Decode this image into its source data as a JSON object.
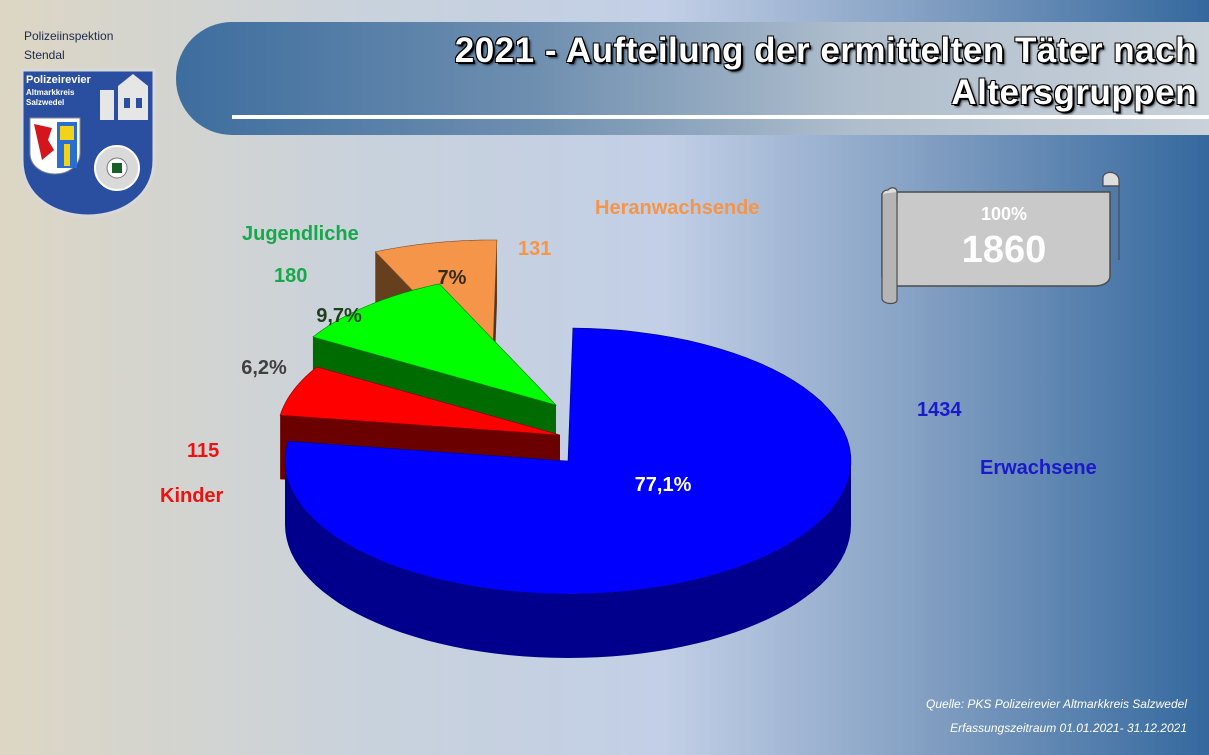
{
  "header": {
    "org_line1": "Polizeiinspektion",
    "org_line2": "Stendal",
    "title_line1": "2021 - Aufteilung der ermittelten Täter nach",
    "title_line2": "Altersgruppen"
  },
  "logo": {
    "line1": "Polizeirevier",
    "line2": "Altmarkkreis",
    "line3": "Salzwedel",
    "icon": "police-badge-icon"
  },
  "total_box": {
    "percent": "100%",
    "total": "1860",
    "icon": "scroll-icon"
  },
  "chart_data": {
    "type": "pie",
    "title": "2021 - Aufteilung der ermittelten Täter nach Altersgruppen",
    "total": 1860,
    "exploded": true,
    "three_d": true,
    "slices": [
      {
        "name": "Erwachsene",
        "value": 1434,
        "value_label": "1434",
        "percent_label": "77,1%",
        "color": "#0000ff"
      },
      {
        "name": "Kinder",
        "value": 115,
        "value_label": "115",
        "percent_label": "6,2%",
        "color": "#ff0000"
      },
      {
        "name": "Jugendliche",
        "value": 180,
        "value_label": "180",
        "percent_label": "9,7%",
        "color": "#00ff00"
      },
      {
        "name": "Heranwachsende",
        "value": 131,
        "value_label": "131",
        "percent_label": "7%",
        "color": "#f4954a"
      }
    ],
    "label_colors": {
      "Erwachsene": "#1a1acc",
      "Kinder": "#ee1111",
      "Jugendliche": "#16a84a",
      "Heranwachsende": "#f4954a"
    }
  },
  "footer": {
    "source": "Quelle:  PKS  Polizeirevier Altmarkkreis Salzwedel",
    "period": "Erfassungszeitraum 01.01.2021- 31.12.2021"
  }
}
